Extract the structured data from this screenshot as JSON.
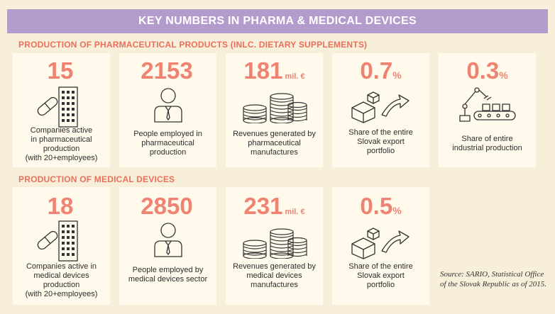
{
  "title": "KEY NUMBERS IN PHARMA & MEDICAL DEVICES",
  "pharma": {
    "heading": "PRODUCTION OF PHARMACEUTICAL PRODUCTS (INLC. DIETARY SUPPLEMENTS)",
    "cards": [
      {
        "value": "15",
        "unit": "",
        "icon": "building-pill-icon",
        "label_lines": [
          "Companies active",
          "in pharmaceutical",
          "production",
          "(with 20+employees)"
        ]
      },
      {
        "value": "2153",
        "unit": "",
        "icon": "person-icon",
        "label_lines": [
          "People employed in",
          "pharmaceutical",
          "production"
        ]
      },
      {
        "value": "181",
        "unit": "mil. €",
        "icon": "coins-icon",
        "label_lines": [
          "Revenues generated by",
          "pharmaceutical",
          "manufactures"
        ]
      },
      {
        "value": "0.7",
        "unit": "%",
        "icon": "export-boxes-icon",
        "label_lines": [
          "Share of the entire",
          "Slovak export",
          "portfolio"
        ]
      },
      {
        "value": "0.3",
        "unit": "%",
        "icon": "robot-arm-icon",
        "label_lines": [
          "Share of entire",
          "industrial production"
        ]
      }
    ]
  },
  "medical": {
    "heading": "PRODUCTION OF MEDICAL DEVICES",
    "cards": [
      {
        "value": "18",
        "unit": "",
        "icon": "building-pill-icon",
        "label_lines": [
          "Companies active in",
          "medical devices",
          "production",
          "(with 20+employees)"
        ]
      },
      {
        "value": "2850",
        "unit": "",
        "icon": "person-icon",
        "label_lines": [
          "People employed by",
          "medical devices sector"
        ]
      },
      {
        "value": "231",
        "unit": "mil. €",
        "icon": "coins-icon",
        "label_lines": [
          "Revenues generated by",
          "medical devices",
          "manufactures"
        ]
      },
      {
        "value": "0.5",
        "unit": "%",
        "icon": "export-boxes-icon",
        "label_lines": [
          "Share of the entire",
          "Slovak export",
          "portfolio"
        ]
      }
    ]
  },
  "source": "Source: SARIO, Statistical Office of the Slovak Republic as of 2015.",
  "colors": {
    "banner": "#b39bcb",
    "accent": "#ef8270",
    "card": "#fffaec",
    "background": "#f7efd9"
  }
}
